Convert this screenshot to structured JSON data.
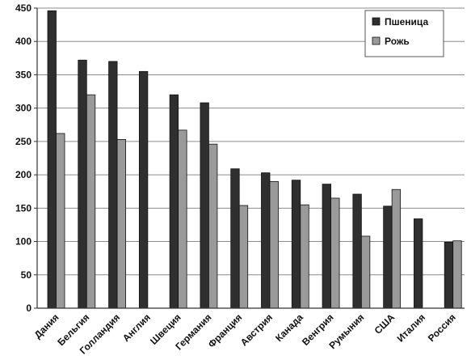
{
  "chart_data": {
    "type": "bar",
    "categories": [
      "Дания",
      "Бельгия",
      "Голландия",
      "Англия",
      "Швеция",
      "Германия",
      "Франция",
      "Австрия",
      "Канада",
      "Венгрия",
      "Румыния",
      "США",
      "Италия",
      "Россия"
    ],
    "series": [
      {
        "name": "Пшеница",
        "values": [
          446,
          372,
          370,
          355,
          320,
          308,
          209,
          203,
          192,
          186,
          171,
          153,
          134,
          99
        ],
        "color": "#2f2f2f"
      },
      {
        "name": "Рожь",
        "values": [
          262,
          320,
          253,
          null,
          267,
          246,
          154,
          190,
          155,
          165,
          108,
          178,
          null,
          101
        ],
        "color": "#9a9a9a"
      }
    ],
    "ylim": [
      0,
      450
    ],
    "yticks": [
      0,
      50,
      100,
      150,
      200,
      250,
      300,
      350,
      400,
      450
    ],
    "grid": true,
    "legend_position": "top-right"
  }
}
